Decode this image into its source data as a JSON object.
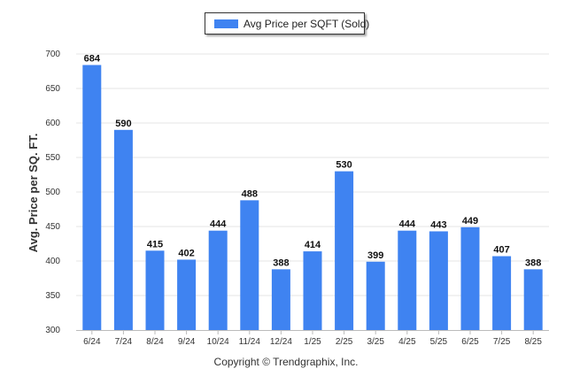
{
  "legend": {
    "label": "Avg Price per SQFT (Sold)"
  },
  "footer": {
    "copyright": "Copyright © Trendgraphix, Inc."
  },
  "chart_data": {
    "type": "bar",
    "title": "",
    "xlabel": "",
    "ylabel": "Avg. Price per SQ. FT.",
    "categories": [
      "6/24",
      "7/24",
      "8/24",
      "9/24",
      "10/24",
      "11/24",
      "12/24",
      "1/25",
      "2/25",
      "3/25",
      "4/25",
      "5/25",
      "6/25",
      "7/25",
      "8/25"
    ],
    "series": [
      {
        "name": "Avg Price per SQFT (Sold)",
        "values": [
          684,
          590,
          415,
          402,
          444,
          488,
          388,
          414,
          530,
          399,
          444,
          443,
          449,
          407,
          388
        ]
      }
    ],
    "ylim": [
      300,
      700
    ],
    "yticks": [
      300,
      350,
      400,
      450,
      500,
      550,
      600,
      650,
      700
    ],
    "grid": true,
    "legend_position": "top-center",
    "colors": {
      "bar": "#3f83f1",
      "grid": "#e6e6e6",
      "axis": "#bbbbbb"
    }
  }
}
